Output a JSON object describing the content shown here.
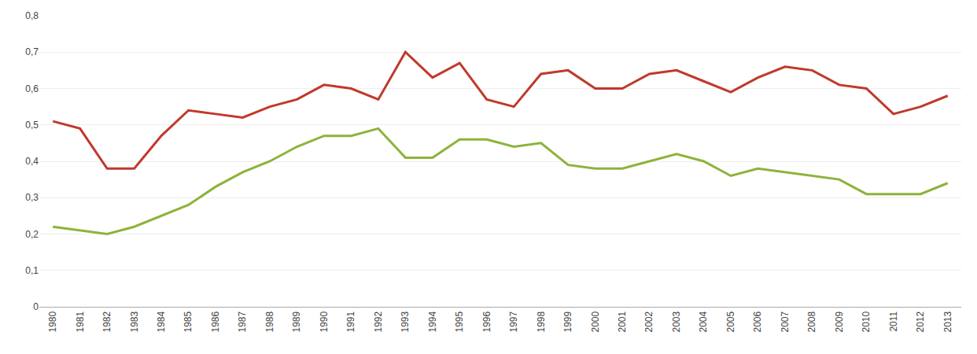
{
  "chart_data": {
    "type": "line",
    "x": [
      1980,
      1981,
      1982,
      1983,
      1984,
      1985,
      1986,
      1987,
      1988,
      1989,
      1990,
      1991,
      1992,
      1993,
      1994,
      1995,
      1996,
      1997,
      1998,
      1999,
      2000,
      2001,
      2002,
      2003,
      2004,
      2005,
      2006,
      2007,
      2008,
      2009,
      2010,
      2011,
      2012,
      2013
    ],
    "series": [
      {
        "color": "#c0392b",
        "values": [
          0.51,
          0.49,
          0.38,
          0.38,
          0.47,
          0.54,
          0.53,
          0.52,
          0.55,
          0.57,
          0.61,
          0.6,
          0.57,
          0.7,
          0.63,
          0.67,
          0.57,
          0.55,
          0.64,
          0.65,
          0.6,
          0.6,
          0.64,
          0.65,
          0.62,
          0.59,
          0.63,
          0.66,
          0.65,
          0.61,
          0.6,
          0.53,
          0.55,
          0.58
        ]
      },
      {
        "color": "#8db33a",
        "values": [
          0.22,
          0.21,
          0.2,
          0.22,
          0.25,
          0.28,
          0.33,
          0.37,
          0.4,
          0.44,
          0.47,
          0.47,
          0.49,
          0.41,
          0.41,
          0.46,
          0.46,
          0.44,
          0.45,
          0.39,
          0.38,
          0.38,
          0.4,
          0.42,
          0.4,
          0.36,
          0.38,
          0.37,
          0.36,
          0.35,
          0.31,
          0.31,
          0.31,
          0.34
        ]
      }
    ],
    "xlim": [
      1979.5,
      2013.5
    ],
    "xticks": [
      1980,
      1981,
      1982,
      1983,
      1984,
      1985,
      1986,
      1987,
      1988,
      1989,
      1990,
      1991,
      1992,
      1993,
      1994,
      1995,
      1996,
      1997,
      1998,
      1999,
      2000,
      2001,
      2002,
      2003,
      2004,
      2005,
      2006,
      2007,
      2008,
      2009,
      2010,
      2011,
      2012,
      2013
    ],
    "ylim": [
      0,
      0.8
    ],
    "yticks": [
      0,
      {
        "value": 0.1,
        "label": "0,1"
      },
      {
        "value": 0.2,
        "label": "0,2"
      },
      {
        "value": 0.3,
        "label": "0,3"
      },
      {
        "value": 0.4,
        "label": "0,4"
      },
      {
        "value": 0.5,
        "label": "0,5"
      },
      {
        "value": 0.6,
        "label": "0,6"
      },
      {
        "value": 0.7,
        "label": "0,7"
      },
      {
        "value": 0.8,
        "label": "0,8"
      }
    ],
    "grid": true
  }
}
